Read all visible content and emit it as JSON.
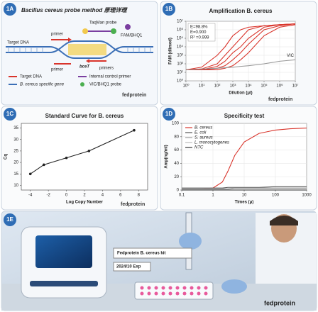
{
  "diagram": {
    "label": "1A",
    "title": "Bacillus cereus probe method 原理详理",
    "texts": {
      "probe": "TaqMan probe",
      "primer_top": "primer",
      "dye": "FAM/BHQ1",
      "target": "Target DNA",
      "gene": "bceT",
      "primer_bottom": "primer",
      "primers_right": "primers"
    },
    "legend": [
      "Target DNA",
      "Internal control primer",
      "B. cereus specific gene",
      "VIC/BHQ1 probe"
    ],
    "logo": "fedprotein"
  },
  "chart_data": [
    {
      "panel": "1B",
      "type": "line",
      "title": "Amplification B. cereus",
      "xlabel": "Dilution (μl)",
      "ylabel": "FAM (dlimed)",
      "logo": "fedprotein",
      "xlog": true,
      "ylog": true,
      "xlim": [
        1,
        10000000
      ],
      "ylim": [
        1,
        10000000
      ],
      "xticks": [
        {
          "value": 1,
          "label": "10⁰"
        },
        {
          "value": 10,
          "label": "10¹"
        },
        {
          "value": 100,
          "label": "10²"
        },
        {
          "value": 1000,
          "label": "10³"
        },
        {
          "value": 10000,
          "label": "10⁴"
        },
        {
          "value": 100000,
          "label": "10⁵"
        },
        {
          "value": 1000000,
          "label": "10⁶"
        },
        {
          "value": 10000000,
          "label": "10⁷"
        }
      ],
      "yticks": [
        {
          "value": 1,
          "label": "10⁰"
        },
        {
          "value": 10,
          "label": "10¹"
        },
        {
          "value": 100,
          "label": "10²"
        },
        {
          "value": 1000,
          "label": "10³"
        },
        {
          "value": 10000,
          "label": "10⁴"
        },
        {
          "value": 100000,
          "label": "10⁵"
        },
        {
          "value": 1000000,
          "label": "10⁶"
        },
        {
          "value": 10000000,
          "label": "10⁷"
        }
      ],
      "annotations": [
        "E=98.8%",
        "E=0.900",
        "R² =0.999"
      ],
      "grid": true,
      "x": [
        1,
        10,
        100,
        316,
        1000,
        3162,
        10000,
        100000,
        1000000,
        10000000
      ],
      "series": [
        {
          "color": "#d9342b",
          "values": [
            20,
            40,
            1000,
            10000,
            200000,
            1000000,
            2000000,
            3000000,
            4000000,
            5000000
          ]
        },
        {
          "color": "#d9342b",
          "values": [
            20,
            25,
            100,
            1000,
            10000,
            100000,
            1000000,
            3000000,
            4000000,
            5000000
          ]
        },
        {
          "color": "#d9342b",
          "values": [
            20,
            20,
            50,
            200,
            2000,
            10000,
            100000,
            2000000,
            4000000,
            5000000
          ]
        },
        {
          "color": "#d9342b",
          "values": [
            20,
            20,
            30,
            60,
            300,
            2000,
            20000,
            1000000,
            3000000,
            5000000
          ]
        },
        {
          "color": "#d9342b",
          "values": [
            20,
            20,
            20,
            30,
            60,
            300,
            2000,
            200000,
            2000000,
            4000000
          ]
        },
        {
          "name": "VIC",
          "color": "#999999",
          "values": [
            20,
            25,
            30,
            35,
            40,
            50,
            60,
            100,
            200,
            300
          ]
        }
      ],
      "legend": "line-end"
    },
    {
      "panel": "1C",
      "type": "scatter",
      "title": "Standard Curve for B. cereus",
      "xlabel": "Log Copy Number",
      "ylabel": "Cq",
      "logo": "fedprotein",
      "xlim": [
        -5,
        9
      ],
      "ylim": [
        8,
        37
      ],
      "xticks": [
        -4,
        -2,
        0,
        2,
        4,
        6,
        8
      ],
      "yticks": [
        10,
        15,
        20,
        25,
        30,
        35
      ],
      "line": true,
      "grid": false,
      "x": [
        -4,
        -2.5,
        0,
        2.5,
        7.5
      ],
      "series": [
        {
          "color": "#222222",
          "values": [
            15,
            19,
            22,
            25,
            34
          ]
        }
      ]
    },
    {
      "panel": "1D",
      "type": "line",
      "title": "Specificity test",
      "xlabel": "Times (μ)",
      "ylabel": "Amp(ng/ml)",
      "xlog": true,
      "xlim": [
        0.1,
        1000
      ],
      "ylim": [
        0,
        100
      ],
      "xticks": [
        0.1,
        1,
        10,
        100,
        1000
      ],
      "yticks": [
        0,
        20,
        40,
        60,
        80,
        100
      ],
      "grid": true,
      "legend": "upper left",
      "x": [
        0.1,
        0.3,
        1,
        2,
        3,
        5,
        10,
        30,
        100,
        300,
        1000
      ],
      "series": [
        {
          "name": "B. cereus",
          "color": "#d9342b",
          "values": [
            1,
            1,
            3,
            12,
            28,
            52,
            72,
            85,
            90,
            92,
            93
          ]
        },
        {
          "name": "E. coli",
          "color": "#555555",
          "values": [
            3,
            3,
            3,
            3,
            4,
            4,
            4,
            4,
            5,
            5,
            5
          ]
        },
        {
          "name": "S. aureus",
          "color": "#999999",
          "values": [
            2,
            2,
            2,
            2,
            2,
            3,
            3,
            3,
            3,
            3,
            3
          ]
        },
        {
          "name": "L. monocytogenes",
          "color": "#bbbbbb",
          "values": [
            1,
            1,
            1,
            1,
            1,
            2,
            2,
            2,
            2,
            2,
            2
          ]
        },
        {
          "name": "NTC",
          "color": "#333333",
          "values": [
            0,
            0,
            0,
            0,
            0,
            0,
            0,
            0,
            0,
            0,
            0
          ]
        }
      ]
    }
  ],
  "photo": {
    "label": "1E",
    "kit": "Fedprotein B. cereus kit",
    "exp": "2024/10 Exp",
    "logo": "fedprotein"
  }
}
